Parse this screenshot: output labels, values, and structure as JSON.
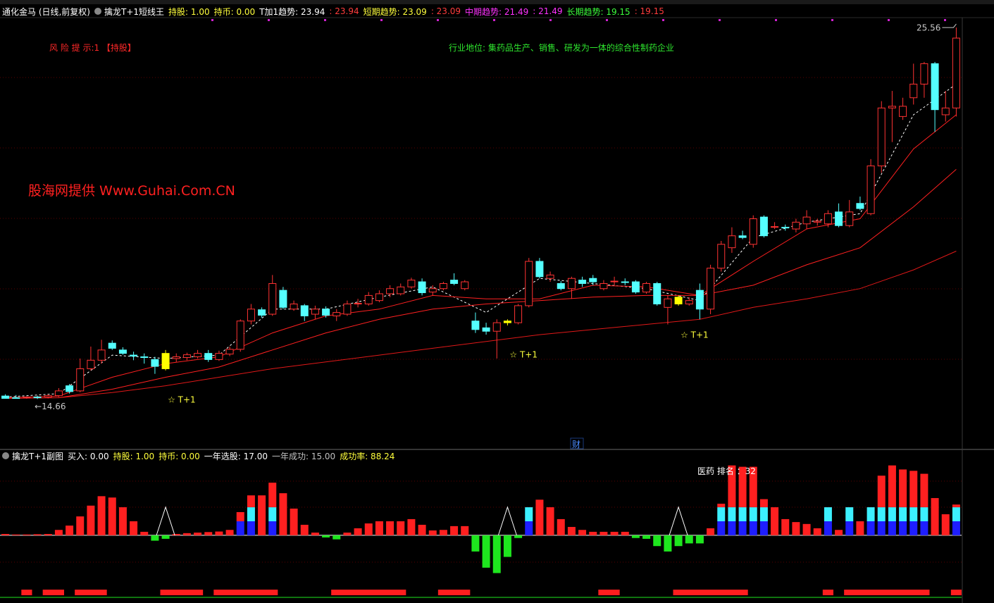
{
  "header": {
    "title": "通化金马 (日线,前复权)",
    "indicator": "擒龙T+1短线王",
    "items": [
      {
        "text": "持股: 1.00",
        "color": "#ffff3c"
      },
      {
        "text": "持币: 0.00",
        "color": "#ffff3c"
      },
      {
        "text": "T加1趋势: 23.94",
        "color": "#ffffff"
      },
      {
        "text": ": 23.94",
        "color": "#ff3c3c"
      },
      {
        "text": "短期趋势: 23.09",
        "color": "#ffff3c"
      },
      {
        "text": ": 23.09",
        "color": "#ff3c3c"
      },
      {
        "text": "中期趋势: 21.49",
        "color": "#ff32ff"
      },
      {
        "text": ": 21.49",
        "color": "#ff32ff"
      },
      {
        "text": "长期趋势: 19.15",
        "color": "#3cff3c"
      },
      {
        "text": ": 19.15",
        "color": "#ff3c3c"
      }
    ]
  },
  "sub_header": {
    "indicator": "擒龙T+1副图",
    "items": [
      {
        "text": "买入: 0.00",
        "color": "#ffffff"
      },
      {
        "text": "持股: 1.00",
        "color": "#ffff3c"
      },
      {
        "text": "持币: 0.00",
        "color": "#ffff3c"
      },
      {
        "text": "一年选股: 17.00",
        "color": "#ffffff"
      },
      {
        "text": "一年成功: 15.00",
        "color": "#c0c0c0"
      },
      {
        "text": "成功率: 88.24",
        "color": "#ffff3c"
      }
    ]
  },
  "texts": {
    "risk": "风 险 提 示:1 【持股】",
    "industry": "行业地位: 集药品生产、销售、研发为一体的综合性制药企业",
    "watermark": "股海网提供 Www.Guhai.Com.CN",
    "cai": "财",
    "rank": "医药 排名 ：32"
  },
  "chart_data": [
    {
      "type": "candlestick",
      "ylim": [
        13.72,
        25.83
      ],
      "up_color": "#ff3232",
      "down_color": "#54ffff",
      "highlight_color": "#ffff00",
      "open": [
        14.75,
        14.7,
        14.7,
        14.72,
        14.72,
        14.76,
        15.05,
        14.9,
        15.55,
        15.8,
        16.3,
        16.1,
        15.95,
        15.9,
        15.82,
        15.55,
        15.85,
        15.88,
        15.9,
        16.0,
        15.82,
        15.98,
        16.12,
        16.95,
        17.28,
        17.15,
        17.85,
        17.3,
        17.4,
        17.15,
        17.3,
        17.1,
        17.15,
        17.45,
        17.45,
        17.55,
        17.75,
        17.75,
        17.95,
        18.1,
        17.8,
        17.9,
        18.15,
        17.9,
        16.95,
        16.75,
        16.65,
        16.9,
        16.9,
        17.4,
        18.7,
        18.2,
        18.05,
        17.9,
        18.15,
        18.2,
        17.9,
        18.1,
        18.1,
        18.1,
        17.8,
        18.05,
        17.35,
        17.45,
        17.45,
        17.85,
        17.3,
        18.5,
        19.1,
        19.45,
        19.2,
        20.0,
        19.7,
        19.7,
        19.65,
        19.8,
        19.85,
        19.8,
        20.15,
        19.75,
        20.4,
        20.1,
        21.5,
        23.2,
        22.95,
        23.5,
        23.9,
        24.5,
        23.0,
        23.2
      ],
      "high": [
        14.8,
        14.78,
        14.74,
        14.76,
        14.8,
        14.98,
        15.1,
        15.85,
        16.2,
        16.4,
        16.38,
        16.18,
        16.05,
        16.0,
        15.9,
        16.1,
        16.0,
        16.02,
        16.1,
        16.1,
        16.08,
        16.2,
        17.0,
        17.45,
        17.35,
        18.3,
        17.95,
        17.55,
        17.45,
        17.4,
        17.38,
        17.3,
        17.55,
        17.6,
        17.8,
        17.85,
        18.0,
        18.05,
        18.22,
        18.2,
        18.0,
        18.1,
        18.35,
        18.15,
        17.2,
        16.9,
        17.0,
        17.0,
        17.45,
        18.8,
        18.8,
        18.4,
        18.12,
        18.25,
        18.25,
        18.3,
        18.15,
        18.25,
        18.2,
        18.15,
        18.1,
        18.1,
        17.7,
        17.7,
        17.65,
        18.05,
        18.6,
        19.3,
        19.7,
        19.6,
        20.05,
        20.05,
        19.85,
        19.78,
        19.95,
        20.2,
        19.95,
        20.2,
        20.4,
        20.5,
        20.6,
        21.7,
        23.4,
        23.7,
        23.5,
        24.5,
        24.55,
        24.55,
        23.7,
        25.56
      ],
      "low": [
        14.68,
        14.68,
        14.67,
        14.66,
        14.68,
        14.72,
        14.82,
        14.86,
        15.5,
        15.7,
        16.1,
        15.96,
        15.8,
        15.7,
        15.4,
        15.5,
        15.75,
        15.8,
        15.85,
        15.75,
        15.78,
        15.92,
        16.05,
        16.85,
        17.05,
        17.1,
        17.3,
        17.25,
        16.95,
        17.0,
        17.05,
        16.95,
        17.1,
        17.35,
        17.4,
        17.5,
        17.65,
        17.7,
        17.9,
        17.7,
        17.7,
        17.85,
        18.0,
        17.85,
        16.6,
        16.55,
        15.85,
        16.82,
        16.85,
        17.35,
        18.2,
        18.1,
        17.85,
        17.6,
        17.95,
        18.0,
        17.85,
        18.0,
        18.0,
        17.75,
        17.75,
        17.4,
        16.85,
        17.4,
        17.4,
        17.0,
        17.15,
        18.4,
        18.95,
        19.35,
        19.1,
        19.4,
        19.65,
        19.6,
        19.55,
        19.65,
        19.75,
        19.7,
        19.7,
        19.7,
        20.2,
        20.05,
        21.3,
        22.2,
        22.85,
        23.3,
        23.5,
        22.5,
        22.8,
        22.95
      ],
      "close": [
        14.68,
        14.69,
        14.72,
        14.7,
        14.76,
        14.9,
        14.88,
        15.55,
        15.8,
        16.1,
        16.15,
        16.0,
        15.92,
        15.88,
        15.62,
        16.0,
        15.9,
        15.96,
        16.0,
        15.82,
        16.0,
        16.12,
        16.95,
        17.3,
        17.12,
        18.05,
        17.35,
        17.45,
        17.1,
        17.3,
        17.12,
        17.2,
        17.45,
        17.47,
        17.7,
        17.75,
        17.9,
        17.95,
        18.15,
        17.78,
        17.9,
        18.05,
        18.05,
        18.1,
        16.7,
        16.65,
        16.9,
        16.95,
        17.4,
        18.7,
        18.25,
        18.3,
        17.9,
        18.2,
        18.05,
        18.1,
        18.05,
        18.12,
        18.08,
        17.8,
        18.05,
        17.45,
        17.6,
        17.65,
        17.55,
        17.3,
        18.5,
        19.2,
        19.45,
        19.4,
        19.95,
        19.45,
        19.72,
        19.68,
        19.85,
        20.0,
        19.88,
        20.1,
        19.75,
        20.15,
        20.25,
        21.5,
        23.2,
        23.25,
        23.25,
        23.9,
        24.5,
        23.15,
        23.2,
        25.25
      ],
      "lines": [
        {
          "color": "#ffffff",
          "dash": true,
          "x": [
            0,
            5,
            10,
            15,
            20,
            25,
            30,
            35,
            40,
            45,
            50,
            55,
            60,
            65,
            70,
            75,
            80,
            85,
            89
          ],
          "values": [
            14.72,
            14.82,
            15.95,
            15.85,
            15.95,
            17.3,
            17.3,
            17.65,
            17.95,
            17.2,
            18.2,
            18.05,
            17.9,
            17.55,
            19.4,
            19.85,
            20.1,
            23.0,
            23.9
          ]
        },
        {
          "color": "#ff2020",
          "dash": false,
          "x": [
            0,
            5,
            10,
            15,
            20,
            25,
            30,
            35,
            40,
            45,
            50,
            55,
            60,
            65,
            70,
            75,
            80,
            85,
            89
          ],
          "values": [
            14.7,
            14.75,
            15.3,
            15.7,
            15.9,
            16.6,
            17.1,
            17.3,
            17.7,
            17.6,
            17.6,
            18.0,
            17.95,
            17.7,
            18.7,
            19.65,
            19.95,
            22.0,
            23.0
          ]
        },
        {
          "color": "#ff2020",
          "dash": false,
          "x": [
            0,
            5,
            10,
            15,
            20,
            25,
            30,
            35,
            40,
            45,
            50,
            55,
            60,
            65,
            70,
            75,
            80,
            85,
            89
          ],
          "values": [
            14.68,
            14.7,
            14.95,
            15.3,
            15.6,
            16.1,
            16.6,
            17.0,
            17.3,
            17.45,
            17.55,
            17.65,
            17.7,
            17.7,
            18.0,
            18.6,
            19.1,
            20.3,
            21.4
          ]
        },
        {
          "color": "#e01818",
          "dash": false,
          "x": [
            5,
            10,
            15,
            20,
            25,
            30,
            35,
            40,
            45,
            50,
            55,
            60,
            65,
            70,
            75,
            80,
            85,
            89
          ],
          "values": [
            14.7,
            14.85,
            15.05,
            15.3,
            15.55,
            15.75,
            15.95,
            16.15,
            16.35,
            16.55,
            16.7,
            16.85,
            17.0,
            17.35,
            17.6,
            17.9,
            18.45,
            19.0
          ]
        }
      ],
      "highlight_indices": [
        15,
        47,
        63
      ],
      "signal_label": "☆ T+1",
      "price_marks": [
        {
          "index": 3,
          "value": 14.66,
          "label": "←14.66"
        },
        {
          "index": 89,
          "value": 25.56,
          "label": "25.56"
        }
      ]
    },
    {
      "type": "bar",
      "ylim": [
        -23,
        30
      ],
      "highlight_indices": [
        15,
        47,
        63
      ],
      "series": [
        {
          "color": "#1e1eff",
          "values": [
            0,
            0,
            0,
            0,
            0,
            0,
            0,
            0,
            0,
            0,
            0,
            0,
            0,
            0,
            0,
            0,
            0,
            0,
            0,
            0,
            0,
            0,
            5.2,
            5.2,
            0,
            5.2,
            0,
            0,
            0,
            0,
            0,
            0,
            0,
            0,
            0,
            0,
            0,
            0,
            0,
            0,
            0,
            0,
            0,
            0,
            0,
            0,
            0,
            0,
            0,
            5.2,
            0,
            0,
            0,
            0,
            0,
            0,
            0,
            0,
            0,
            0,
            0,
            0,
            0,
            0,
            0,
            0,
            0,
            5.2,
            5.2,
            5.2,
            5.2,
            5.2,
            0,
            0,
            0,
            0,
            0,
            5.2,
            0,
            5.2,
            0,
            5.2,
            5.2,
            5.2,
            5.2,
            5.2,
            5.2,
            0,
            0,
            5.2
          ]
        },
        {
          "color": "#3cf0ff",
          "values": [
            0,
            0,
            0,
            0,
            0,
            0,
            0,
            0,
            0,
            0,
            0,
            0,
            0,
            0,
            0,
            0,
            0,
            0,
            0,
            0,
            0,
            0,
            0,
            5.2,
            0,
            5.2,
            0,
            0,
            0,
            0,
            0,
            0,
            0,
            0,
            0,
            0,
            0,
            0,
            0,
            0,
            0,
            0,
            0,
            0,
            0,
            0,
            0,
            0,
            0,
            5.2,
            0,
            0,
            0,
            0,
            0,
            0,
            0,
            0,
            0,
            0,
            0,
            0,
            0,
            0,
            0,
            0,
            0,
            5.2,
            5.2,
            5.2,
            5.2,
            5.2,
            0,
            0,
            0,
            0,
            0,
            5.2,
            0,
            5.2,
            0,
            5.2,
            5.2,
            5.2,
            5.2,
            5.2,
            5.2,
            0,
            0,
            5.2
          ]
        },
        {
          "color": "#ff2020",
          "negative_color": "#1ee61e",
          "values": [
            0.5,
            0.3,
            0.3,
            0.4,
            0.5,
            2,
            3.6,
            7,
            11,
            14.5,
            14,
            10.4,
            5.2,
            1.3,
            -2,
            -1.3,
            0.5,
            0.8,
            1,
            1.2,
            1.4,
            2,
            3.4,
            4.4,
            14.8,
            9.1,
            15.6,
            9.9,
            3.9,
            1,
            -0.8,
            -1.5,
            1,
            2.6,
            4.4,
            5.2,
            5.2,
            5.2,
            6,
            3.9,
            1.8,
            2,
            3.4,
            3.4,
            -6,
            -12,
            -14,
            -8,
            -1,
            0,
            13.2,
            10.4,
            6,
            3.1,
            2,
            1.3,
            1.3,
            1.3,
            1.3,
            -1,
            -1.3,
            -4,
            -6,
            -4,
            -3,
            -3,
            2.6,
            1.3,
            15.5,
            15,
            15,
            3,
            10.4,
            6,
            4.9,
            4.2,
            2.6,
            0,
            2,
            0,
            5.2,
            0,
            11.7,
            15.5,
            14,
            13.5,
            12.4,
            13.8,
            7.8,
            1
          ]
        }
      ],
      "signal_color": "#ff1e1e",
      "signal_ranges": [
        [
          2,
          2
        ],
        [
          4,
          5
        ],
        [
          7,
          9
        ],
        [
          15,
          18
        ],
        [
          20,
          25
        ],
        [
          31,
          37
        ],
        [
          41,
          43
        ],
        [
          56,
          57
        ],
        [
          63,
          69
        ],
        [
          77,
          77
        ],
        [
          79,
          86
        ],
        [
          89,
          89
        ]
      ]
    }
  ]
}
